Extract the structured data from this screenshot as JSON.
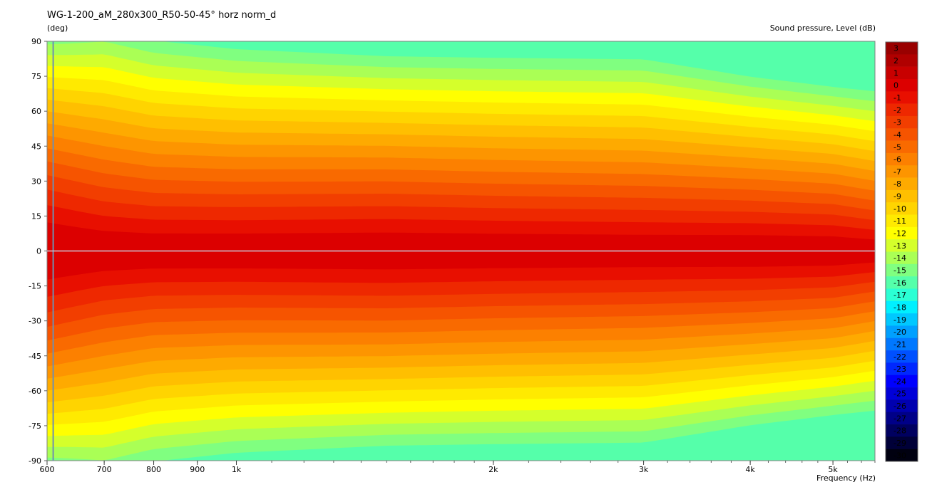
{
  "chart_data": {
    "type": "heatmap",
    "title": "WG-1-200_aM_280x300_R50-50-45° horz norm_d",
    "ylabel": "(deg)",
    "xlabel": "Frequency  (Hz)",
    "colorbar_label": "Sound pressure, Level  (dB)",
    "x_scale": "log",
    "xlim": [
      600,
      5600
    ],
    "ylim": [
      -90,
      90
    ],
    "x_ticks": [
      {
        "value": 600,
        "label": "600"
      },
      {
        "value": 700,
        "label": "700"
      },
      {
        "value": 800,
        "label": "800"
      },
      {
        "value": 900,
        "label": "900"
      },
      {
        "value": 1000,
        "label": "1k"
      },
      {
        "value": 2000,
        "label": "2k"
      },
      {
        "value": 3000,
        "label": "3k"
      },
      {
        "value": 4000,
        "label": "4k"
      },
      {
        "value": 5000,
        "label": "5k"
      }
    ],
    "y_ticks": [
      {
        "value": 90,
        "label": "90"
      },
      {
        "value": 75,
        "label": "75"
      },
      {
        "value": 60,
        "label": "60"
      },
      {
        "value": 45,
        "label": "45"
      },
      {
        "value": 30,
        "label": "30"
      },
      {
        "value": 15,
        "label": "15"
      },
      {
        "value": 0,
        "label": "0"
      },
      {
        "value": -15,
        "label": "-15"
      },
      {
        "value": -30,
        "label": "-30"
      },
      {
        "value": -45,
        "label": "-45"
      },
      {
        "value": -60,
        "label": "-60"
      },
      {
        "value": -75,
        "label": "-75"
      },
      {
        "value": -90,
        "label": "-90"
      }
    ],
    "colorbar": {
      "min": -30,
      "max": 3,
      "levels": [
        3,
        2,
        1,
        0,
        -1,
        -2,
        -3,
        -4,
        -5,
        -6,
        -7,
        -8,
        -9,
        -10,
        -11,
        -12,
        -13,
        -14,
        -15,
        -16,
        -17,
        -18,
        -19,
        -20,
        -21,
        -22,
        -23,
        -24,
        -25,
        -26,
        -27,
        -28,
        -29,
        -30
      ],
      "colors": [
        "#990000",
        "#b00000",
        "#c80000",
        "#dc0000",
        "#e80f00",
        "#ee2800",
        "#f23e00",
        "#f65400",
        "#f96a00",
        "#fc8000",
        "#fd9500",
        "#feaa00",
        "#ffbf00",
        "#ffd400",
        "#ffea00",
        "#ffff00",
        "#d5ff2b",
        "#aaff55",
        "#80ff80",
        "#55ffaa",
        "#2bffd4",
        "#00f0ff",
        "#00c8ff",
        "#00a0ff",
        "#0078ff",
        "#0050ff",
        "#0028ff",
        "#0000ff",
        "#0000d8",
        "#0000b0",
        "#000088",
        "#000060",
        "#000038",
        "#000010"
      ]
    },
    "series": [
      {
        "x": 600,
        "beamwidth_6db_deg": 86,
        "beamwidth_10db_deg": 128
      },
      {
        "x": 700,
        "beamwidth_6db_deg": 76,
        "beamwidth_10db_deg": 122
      },
      {
        "x": 800,
        "beamwidth_6db_deg": 70,
        "beamwidth_10db_deg": 114
      },
      {
        "x": 1000,
        "beamwidth_6db_deg": 68,
        "beamwidth_10db_deg": 110
      },
      {
        "x": 1500,
        "beamwidth_6db_deg": 68,
        "beamwidth_10db_deg": 108
      },
      {
        "x": 2000,
        "beamwidth_6db_deg": 66,
        "beamwidth_10db_deg": 106
      },
      {
        "x": 3000,
        "beamwidth_6db_deg": 64,
        "beamwidth_10db_deg": 104
      },
      {
        "x": 4000,
        "beamwidth_6db_deg": 60,
        "beamwidth_10db_deg": 96
      },
      {
        "x": 5000,
        "beamwidth_6db_deg": 56,
        "beamwidth_10db_deg": 90
      },
      {
        "x": 5600,
        "beamwidth_6db_deg": 50,
        "beamwidth_10db_deg": 84
      }
    ],
    "cursor": {
      "x": 610,
      "y": 0
    },
    "grid": false
  }
}
